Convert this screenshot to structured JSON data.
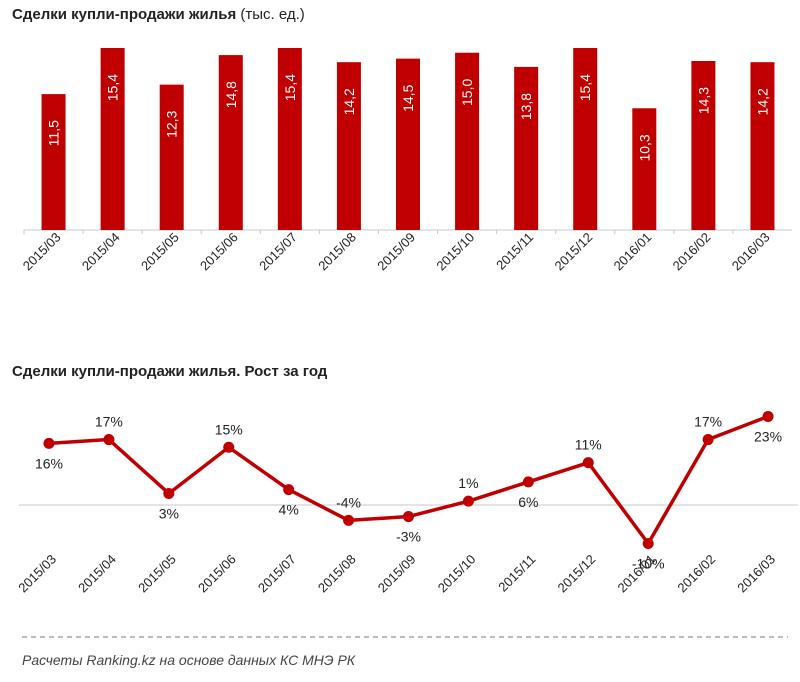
{
  "chart_data": [
    {
      "type": "bar",
      "title": "Сделки купли-продажи жилья",
      "unit": "(тыс. ед.)",
      "categories": [
        "2015/03",
        "2015/04",
        "2015/05",
        "2015/06",
        "2015/07",
        "2015/08",
        "2015/09",
        "2015/10",
        "2015/11",
        "2015/12",
        "2016/01",
        "2016/02",
        "2016/03"
      ],
      "values": [
        11.5,
        15.4,
        12.3,
        14.8,
        15.4,
        14.2,
        14.5,
        15.0,
        13.8,
        15.4,
        10.3,
        14.3,
        14.2
      ],
      "labels": [
        "11,5",
        "15,4",
        "12,3",
        "14,8",
        "15,4",
        "14,2",
        "14,5",
        "15,0",
        "13,8",
        "15,4",
        "10,3",
        "14,3",
        "14,2"
      ],
      "ylim": [
        0,
        15.4
      ],
      "color": "#c00000"
    },
    {
      "type": "line",
      "title": "Сделки купли-продажи жилья. Рост за год",
      "categories": [
        "2015/03",
        "2015/04",
        "2015/05",
        "2015/06",
        "2015/07",
        "2015/08",
        "2015/09",
        "2015/10",
        "2015/11",
        "2015/12",
        "2016/01",
        "2016/02",
        "2016/03"
      ],
      "values": [
        16,
        17,
        3,
        15,
        4,
        -4,
        -3,
        1,
        6,
        11,
        -10,
        17,
        23
      ],
      "labels": [
        "16%",
        "17%",
        "3%",
        "15%",
        "4%",
        "-4%",
        "-3%",
        "1%",
        "6%",
        "11%",
        "-10%",
        "17%",
        "23%"
      ],
      "label_positions": [
        "below",
        "above",
        "below",
        "above",
        "below",
        "above",
        "below",
        "above",
        "below",
        "above",
        "below",
        "above",
        "below"
      ],
      "color": "#c00000"
    }
  ],
  "footer": "Расчеты Ranking.kz на основе данных КС МНЭ РК"
}
